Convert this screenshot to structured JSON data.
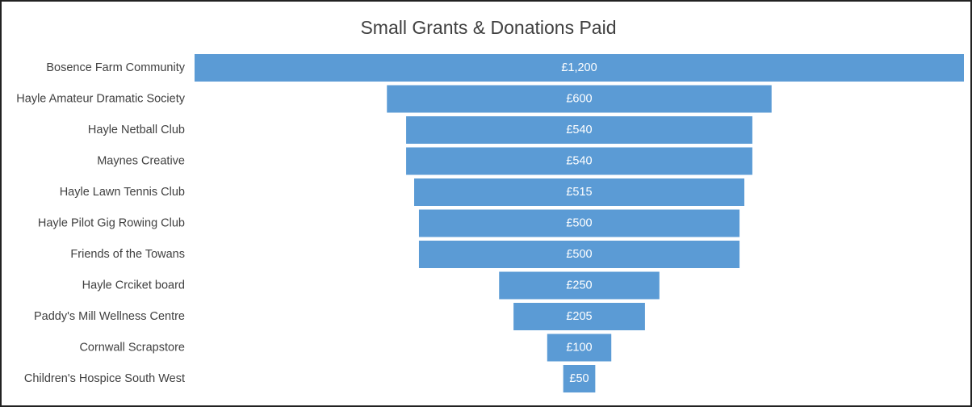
{
  "chart_data": {
    "type": "funnel",
    "title": "Small Grants & Donations Paid",
    "categories": [
      "Bosence Farm Community",
      "Hayle Amateur Dramatic Society",
      "Hayle Netball Club",
      "Maynes Creative",
      "Hayle Lawn Tennis Club",
      "Hayle Pilot Gig Rowing Club",
      "Friends of the Towans",
      "Hayle Crciket board",
      "Paddy's Mill Wellness Centre",
      "Cornwall Scrapstore",
      "Children's Hospice South West"
    ],
    "values": [
      1200,
      600,
      540,
      540,
      515,
      500,
      500,
      250,
      205,
      100,
      50
    ],
    "value_labels": [
      "£1,200",
      "£600",
      "£540",
      "£540",
      "£515",
      "£500",
      "£500",
      "£250",
      "£205",
      "£100",
      "£50"
    ],
    "color": "#5b9bd5"
  }
}
